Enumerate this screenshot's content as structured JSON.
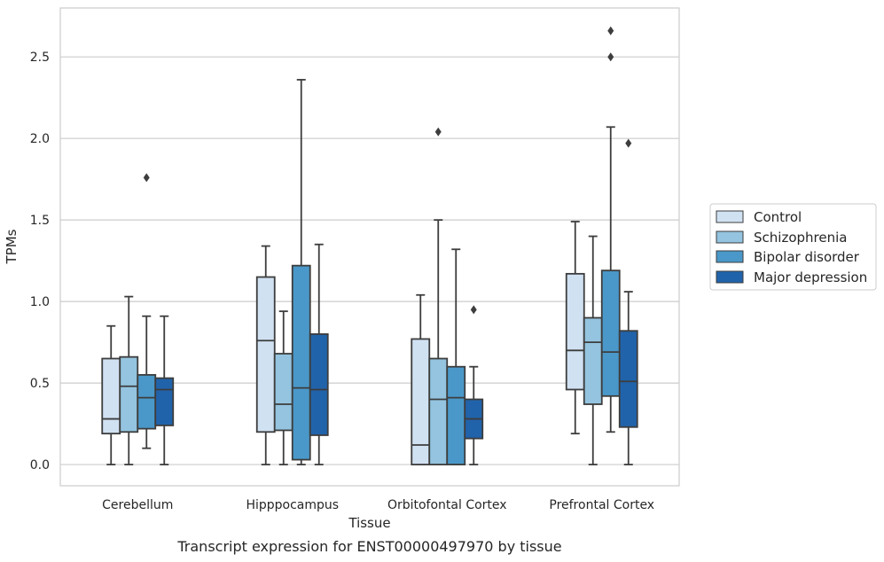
{
  "chart_data": {
    "type": "box",
    "caption": "Transcript expression for ENST00000497970 by tissue",
    "xlabel": "Tissue",
    "ylabel": "TPMs",
    "ylim": [
      -0.13,
      2.8
    ],
    "yticks": [
      0.0,
      0.5,
      1.0,
      1.5,
      2.0,
      2.5
    ],
    "ytick_labels": [
      "0.0",
      "0.5",
      "1.0",
      "1.5",
      "2.0",
      "2.5"
    ],
    "grid": "horizontal",
    "legend_position": "outside-right",
    "categories": [
      "Cerebellum",
      "Hipppocampus",
      "Orbitofontal Cortex",
      "Prefrontal Cortex"
    ],
    "series": [
      {
        "name": "Control",
        "color": "#d0e1f2",
        "boxes": [
          {
            "whisker_low": 0.0,
            "q1": 0.19,
            "median": 0.28,
            "q3": 0.65,
            "whisker_high": 0.85,
            "outliers": []
          },
          {
            "whisker_low": 0.0,
            "q1": 0.2,
            "median": 0.76,
            "q3": 1.15,
            "whisker_high": 1.34,
            "outliers": []
          },
          {
            "whisker_low": 0.0,
            "q1": 0.0,
            "median": 0.12,
            "q3": 0.77,
            "whisker_high": 1.04,
            "outliers": []
          },
          {
            "whisker_low": 0.19,
            "q1": 0.46,
            "median": 0.7,
            "q3": 1.17,
            "whisker_high": 1.49,
            "outliers": []
          }
        ]
      },
      {
        "name": "Schizophrenia",
        "color": "#94c4df",
        "boxes": [
          {
            "whisker_low": 0.0,
            "q1": 0.2,
            "median": 0.48,
            "q3": 0.66,
            "whisker_high": 1.03,
            "outliers": []
          },
          {
            "whisker_low": 0.0,
            "q1": 0.21,
            "median": 0.37,
            "q3": 0.68,
            "whisker_high": 0.94,
            "outliers": []
          },
          {
            "whisker_low": 0.0,
            "q1": 0.0,
            "median": 0.4,
            "q3": 0.65,
            "whisker_high": 1.5,
            "outliers": [
              2.04
            ]
          },
          {
            "whisker_low": 0.0,
            "q1": 0.37,
            "median": 0.75,
            "q3": 0.9,
            "whisker_high": 1.4,
            "outliers": []
          }
        ]
      },
      {
        "name": "Bipolar disorder",
        "color": "#4a98c9",
        "boxes": [
          {
            "whisker_low": 0.1,
            "q1": 0.22,
            "median": 0.41,
            "q3": 0.55,
            "whisker_high": 0.91,
            "outliers": [
              1.76
            ]
          },
          {
            "whisker_low": 0.0,
            "q1": 0.03,
            "median": 0.47,
            "q3": 1.22,
            "whisker_high": 2.36,
            "outliers": []
          },
          {
            "whisker_low": 0.0,
            "q1": 0.0,
            "median": 0.41,
            "q3": 0.6,
            "whisker_high": 1.32,
            "outliers": []
          },
          {
            "whisker_low": 0.2,
            "q1": 0.42,
            "median": 0.69,
            "q3": 1.19,
            "whisker_high": 2.07,
            "outliers": [
              2.5,
              2.66
            ]
          }
        ]
      },
      {
        "name": "Major depression",
        "color": "#2163aa",
        "boxes": [
          {
            "whisker_low": 0.0,
            "q1": 0.24,
            "median": 0.46,
            "q3": 0.53,
            "whisker_high": 0.91,
            "outliers": []
          },
          {
            "whisker_low": 0.0,
            "q1": 0.18,
            "median": 0.46,
            "q3": 0.8,
            "whisker_high": 1.35,
            "outliers": []
          },
          {
            "whisker_low": 0.0,
            "q1": 0.16,
            "median": 0.28,
            "q3": 0.4,
            "whisker_high": 0.6,
            "outliers": [
              0.95
            ]
          },
          {
            "whisker_low": 0.0,
            "q1": 0.23,
            "median": 0.51,
            "q3": 0.82,
            "whisker_high": 1.06,
            "outliers": [
              1.97
            ]
          }
        ]
      }
    ]
  }
}
